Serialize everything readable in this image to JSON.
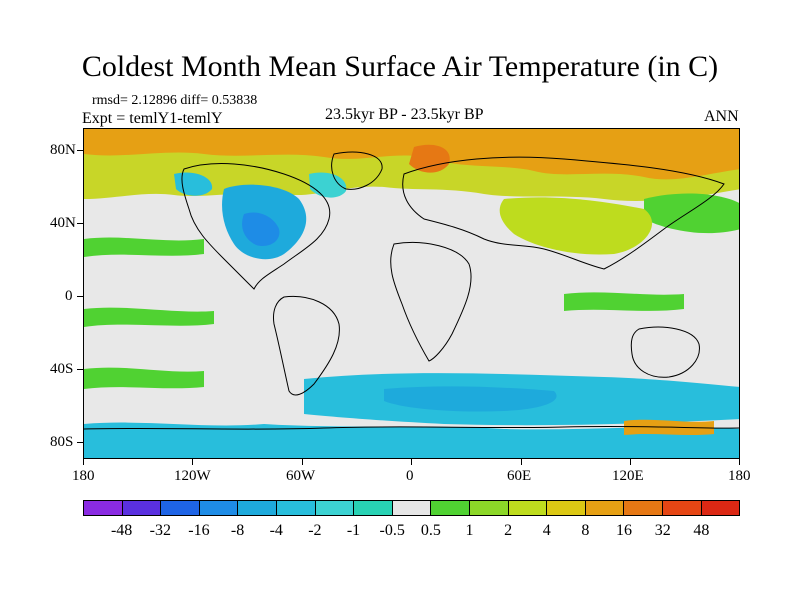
{
  "title": "Coldest Month Mean Surface Air Temperature (in C)",
  "stats": "rmsd= 2.12896 diff= 0.53838",
  "expt": "Expt = temlY1-temlY",
  "period": "23.5kyr BP - 23.5kyr BP",
  "season": "ANN",
  "y_axis_labels": [
    "80N",
    "40N",
    "0",
    "40S",
    "80S"
  ],
  "x_axis_labels": [
    "180",
    "120W",
    "60W",
    "0",
    "60E",
    "120E",
    "180"
  ],
  "colorbar": {
    "labels": [
      "-48",
      "-32",
      "-16",
      "-8",
      "-4",
      "-2",
      "-1",
      "-0.5",
      "0.5",
      "1",
      "2",
      "4",
      "8",
      "16",
      "32",
      "48"
    ],
    "colors": [
      "#8a2be2",
      "#5a30e0",
      "#1e64e6",
      "#1e8ce6",
      "#1eaadc",
      "#28bedc",
      "#3cd2d2",
      "#28d2b4",
      "#e6e6e6",
      "#50d232",
      "#8cd728",
      "#bedc1e",
      "#dcc814",
      "#e6a014",
      "#e67814",
      "#e64614",
      "#dc2814"
    ]
  }
}
